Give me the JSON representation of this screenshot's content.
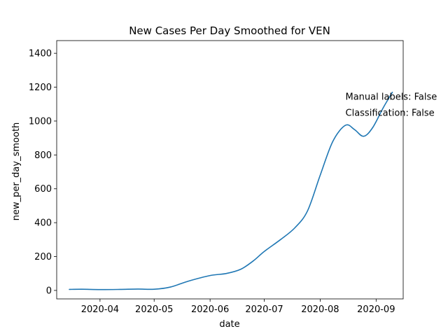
{
  "chart_data": {
    "type": "line",
    "title": "New Cases Per Day Smoothed for VEN",
    "xlabel": "date",
    "ylabel": "new_per_day_smooth",
    "xlim": [
      "2020-03-08",
      "2020-09-16"
    ],
    "ylim": [
      -50,
      1475
    ],
    "xticks": [
      "2020-04",
      "2020-05",
      "2020-06",
      "2020-07",
      "2020-08",
      "2020-09"
    ],
    "yticks": [
      0,
      200,
      400,
      600,
      800,
      1000,
      1200,
      1400
    ],
    "grid": false,
    "series": [
      {
        "color": "#1f77b4",
        "points": [
          {
            "x": "2020-03-15",
            "y": 6
          },
          {
            "x": "2020-03-22",
            "y": 7
          },
          {
            "x": "2020-04-01",
            "y": 5
          },
          {
            "x": "2020-04-12",
            "y": 6
          },
          {
            "x": "2020-04-22",
            "y": 8
          },
          {
            "x": "2020-05-01",
            "y": 7
          },
          {
            "x": "2020-05-10",
            "y": 20
          },
          {
            "x": "2020-05-20",
            "y": 55
          },
          {
            "x": "2020-06-01",
            "y": 88
          },
          {
            "x": "2020-06-10",
            "y": 100
          },
          {
            "x": "2020-06-18",
            "y": 125
          },
          {
            "x": "2020-06-25",
            "y": 175
          },
          {
            "x": "2020-07-01",
            "y": 230
          },
          {
            "x": "2020-07-10",
            "y": 300
          },
          {
            "x": "2020-07-18",
            "y": 370
          },
          {
            "x": "2020-07-25",
            "y": 470
          },
          {
            "x": "2020-08-01",
            "y": 680
          },
          {
            "x": "2020-08-08",
            "y": 880
          },
          {
            "x": "2020-08-15",
            "y": 975
          },
          {
            "x": "2020-08-20",
            "y": 950
          },
          {
            "x": "2020-08-25",
            "y": 910
          },
          {
            "x": "2020-08-30",
            "y": 960
          },
          {
            "x": "2020-09-05",
            "y": 1080
          },
          {
            "x": "2020-09-10",
            "y": 1170
          }
        ]
      }
    ],
    "annotations": [
      {
        "text": "Manual labels: False",
        "x": "2020-08-15",
        "y": 1125
      },
      {
        "text": "Classification: False",
        "x": "2020-08-15",
        "y": 1030
      }
    ]
  }
}
